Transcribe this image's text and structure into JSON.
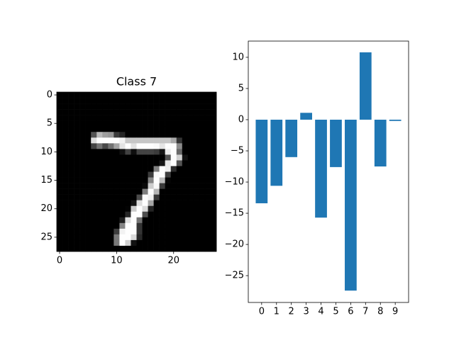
{
  "chart_data": [
    {
      "type": "image",
      "title": "Class 7",
      "cmap": "gray",
      "clim": [
        0,
        255
      ],
      "xlim": [
        -0.5,
        27.5
      ],
      "ylim": [
        27.5,
        -0.5
      ],
      "xticks": [
        0,
        10,
        20
      ],
      "yticks": [
        0,
        5,
        10,
        15,
        20,
        25
      ],
      "pixels": [
        [
          0,
          0,
          0,
          0,
          0,
          0,
          0,
          0,
          0,
          0,
          0,
          0,
          0,
          0,
          0,
          0,
          0,
          0,
          0,
          0,
          0,
          0,
          0,
          0,
          0,
          0,
          0,
          0
        ],
        [
          0,
          0,
          0,
          0,
          0,
          0,
          0,
          0,
          0,
          0,
          0,
          0,
          0,
          0,
          0,
          0,
          0,
          0,
          0,
          0,
          0,
          0,
          0,
          0,
          0,
          0,
          0,
          0
        ],
        [
          0,
          0,
          0,
          0,
          0,
          0,
          0,
          0,
          0,
          0,
          0,
          0,
          0,
          0,
          0,
          0,
          0,
          0,
          0,
          0,
          0,
          0,
          0,
          0,
          0,
          0,
          0,
          0
        ],
        [
          0,
          0,
          0,
          0,
          0,
          0,
          0,
          0,
          0,
          0,
          0,
          0,
          0,
          0,
          0,
          0,
          0,
          0,
          0,
          0,
          0,
          0,
          0,
          0,
          0,
          0,
          0,
          0
        ],
        [
          0,
          0,
          0,
          0,
          0,
          0,
          0,
          0,
          0,
          0,
          0,
          0,
          0,
          0,
          0,
          0,
          0,
          0,
          0,
          0,
          0,
          0,
          0,
          0,
          0,
          0,
          0,
          0
        ],
        [
          0,
          0,
          0,
          0,
          0,
          0,
          0,
          0,
          0,
          0,
          0,
          0,
          0,
          0,
          0,
          0,
          0,
          0,
          0,
          0,
          0,
          0,
          0,
          0,
          0,
          0,
          0,
          0
        ],
        [
          0,
          0,
          0,
          0,
          0,
          0,
          0,
          0,
          0,
          0,
          0,
          0,
          0,
          0,
          0,
          0,
          0,
          0,
          0,
          0,
          0,
          0,
          0,
          0,
          0,
          0,
          0,
          0
        ],
        [
          0,
          0,
          0,
          0,
          0,
          0,
          84,
          185,
          159,
          151,
          60,
          36,
          0,
          0,
          0,
          0,
          0,
          0,
          0,
          0,
          0,
          0,
          0,
          0,
          0,
          0,
          0,
          0
        ],
        [
          0,
          0,
          0,
          0,
          0,
          0,
          222,
          254,
          254,
          254,
          254,
          241,
          198,
          198,
          198,
          198,
          198,
          198,
          198,
          198,
          170,
          52,
          0,
          0,
          0,
          0,
          0,
          0
        ],
        [
          0,
          0,
          0,
          0,
          0,
          0,
          67,
          114,
          72,
          114,
          163,
          227,
          254,
          225,
          254,
          254,
          254,
          250,
          229,
          254,
          254,
          140,
          0,
          0,
          0,
          0,
          0,
          0
        ],
        [
          0,
          0,
          0,
          0,
          0,
          0,
          0,
          0,
          0,
          0,
          0,
          17,
          66,
          14,
          67,
          67,
          67,
          59,
          21,
          236,
          254,
          106,
          0,
          0,
          0,
          0,
          0,
          0
        ],
        [
          0,
          0,
          0,
          0,
          0,
          0,
          0,
          0,
          0,
          0,
          0,
          0,
          0,
          0,
          0,
          0,
          0,
          0,
          0,
          83,
          253,
          209,
          18,
          0,
          0,
          0,
          0,
          0
        ],
        [
          0,
          0,
          0,
          0,
          0,
          0,
          0,
          0,
          0,
          0,
          0,
          0,
          0,
          0,
          0,
          0,
          0,
          0,
          22,
          233,
          255,
          83,
          0,
          0,
          0,
          0,
          0,
          0
        ],
        [
          0,
          0,
          0,
          0,
          0,
          0,
          0,
          0,
          0,
          0,
          0,
          0,
          0,
          0,
          0,
          0,
          0,
          129,
          254,
          238,
          44,
          0,
          0,
          0,
          0,
          0,
          0,
          0
        ],
        [
          0,
          0,
          0,
          0,
          0,
          0,
          0,
          0,
          0,
          0,
          0,
          0,
          0,
          0,
          0,
          0,
          59,
          249,
          254,
          62,
          0,
          0,
          0,
          0,
          0,
          0,
          0,
          0
        ],
        [
          0,
          0,
          0,
          0,
          0,
          0,
          0,
          0,
          0,
          0,
          0,
          0,
          0,
          0,
          0,
          0,
          133,
          254,
          187,
          5,
          0,
          0,
          0,
          0,
          0,
          0,
          0,
          0
        ],
        [
          0,
          0,
          0,
          0,
          0,
          0,
          0,
          0,
          0,
          0,
          0,
          0,
          0,
          0,
          0,
          9,
          205,
          248,
          58,
          0,
          0,
          0,
          0,
          0,
          0,
          0,
          0,
          0
        ],
        [
          0,
          0,
          0,
          0,
          0,
          0,
          0,
          0,
          0,
          0,
          0,
          0,
          0,
          0,
          0,
          126,
          254,
          182,
          0,
          0,
          0,
          0,
          0,
          0,
          0,
          0,
          0,
          0
        ],
        [
          0,
          0,
          0,
          0,
          0,
          0,
          0,
          0,
          0,
          0,
          0,
          0,
          0,
          0,
          75,
          251,
          240,
          57,
          0,
          0,
          0,
          0,
          0,
          0,
          0,
          0,
          0,
          0
        ],
        [
          0,
          0,
          0,
          0,
          0,
          0,
          0,
          0,
          0,
          0,
          0,
          0,
          0,
          19,
          221,
          254,
          166,
          0,
          0,
          0,
          0,
          0,
          0,
          0,
          0,
          0,
          0,
          0
        ],
        [
          0,
          0,
          0,
          0,
          0,
          0,
          0,
          0,
          0,
          0,
          0,
          0,
          3,
          203,
          254,
          219,
          35,
          0,
          0,
          0,
          0,
          0,
          0,
          0,
          0,
          0,
          0,
          0
        ],
        [
          0,
          0,
          0,
          0,
          0,
          0,
          0,
          0,
          0,
          0,
          0,
          0,
          38,
          254,
          254,
          77,
          0,
          0,
          0,
          0,
          0,
          0,
          0,
          0,
          0,
          0,
          0,
          0
        ],
        [
          0,
          0,
          0,
          0,
          0,
          0,
          0,
          0,
          0,
          0,
          0,
          31,
          224,
          254,
          115,
          1,
          0,
          0,
          0,
          0,
          0,
          0,
          0,
          0,
          0,
          0,
          0,
          0
        ],
        [
          0,
          0,
          0,
          0,
          0,
          0,
          0,
          0,
          0,
          0,
          0,
          133,
          254,
          254,
          52,
          0,
          0,
          0,
          0,
          0,
          0,
          0,
          0,
          0,
          0,
          0,
          0,
          0
        ],
        [
          0,
          0,
          0,
          0,
          0,
          0,
          0,
          0,
          0,
          0,
          61,
          242,
          254,
          254,
          52,
          0,
          0,
          0,
          0,
          0,
          0,
          0,
          0,
          0,
          0,
          0,
          0,
          0
        ],
        [
          0,
          0,
          0,
          0,
          0,
          0,
          0,
          0,
          0,
          0,
          121,
          254,
          254,
          219,
          40,
          0,
          0,
          0,
          0,
          0,
          0,
          0,
          0,
          0,
          0,
          0,
          0,
          0
        ],
        [
          0,
          0,
          0,
          0,
          0,
          0,
          0,
          0,
          0,
          0,
          121,
          254,
          207,
          18,
          0,
          0,
          0,
          0,
          0,
          0,
          0,
          0,
          0,
          0,
          0,
          0,
          0,
          0
        ],
        [
          0,
          0,
          0,
          0,
          0,
          0,
          0,
          0,
          0,
          0,
          0,
          0,
          0,
          0,
          0,
          0,
          0,
          0,
          0,
          0,
          0,
          0,
          0,
          0,
          0,
          0,
          0,
          0
        ]
      ]
    },
    {
      "type": "bar",
      "color": "#1f77b4",
      "x": [
        0,
        1,
        2,
        3,
        4,
        5,
        6,
        7,
        8,
        9
      ],
      "values": [
        -13.4,
        -10.6,
        -6.0,
        1.1,
        -15.7,
        -7.6,
        -27.4,
        10.8,
        -7.5,
        -0.2
      ],
      "xlim": [
        -0.9,
        9.9
      ],
      "xticks": [
        0,
        1,
        2,
        3,
        4,
        5,
        6,
        7,
        8,
        9
      ],
      "ylim": [
        -29.3,
        12.6
      ],
      "yticks": [
        {
          "value": -25,
          "label": "−25"
        },
        {
          "value": -20,
          "label": "−20"
        },
        {
          "value": -15,
          "label": "−15"
        },
        {
          "value": -10,
          "label": "−10"
        },
        {
          "value": -5,
          "label": "−5"
        },
        0,
        5,
        10
      ]
    }
  ]
}
